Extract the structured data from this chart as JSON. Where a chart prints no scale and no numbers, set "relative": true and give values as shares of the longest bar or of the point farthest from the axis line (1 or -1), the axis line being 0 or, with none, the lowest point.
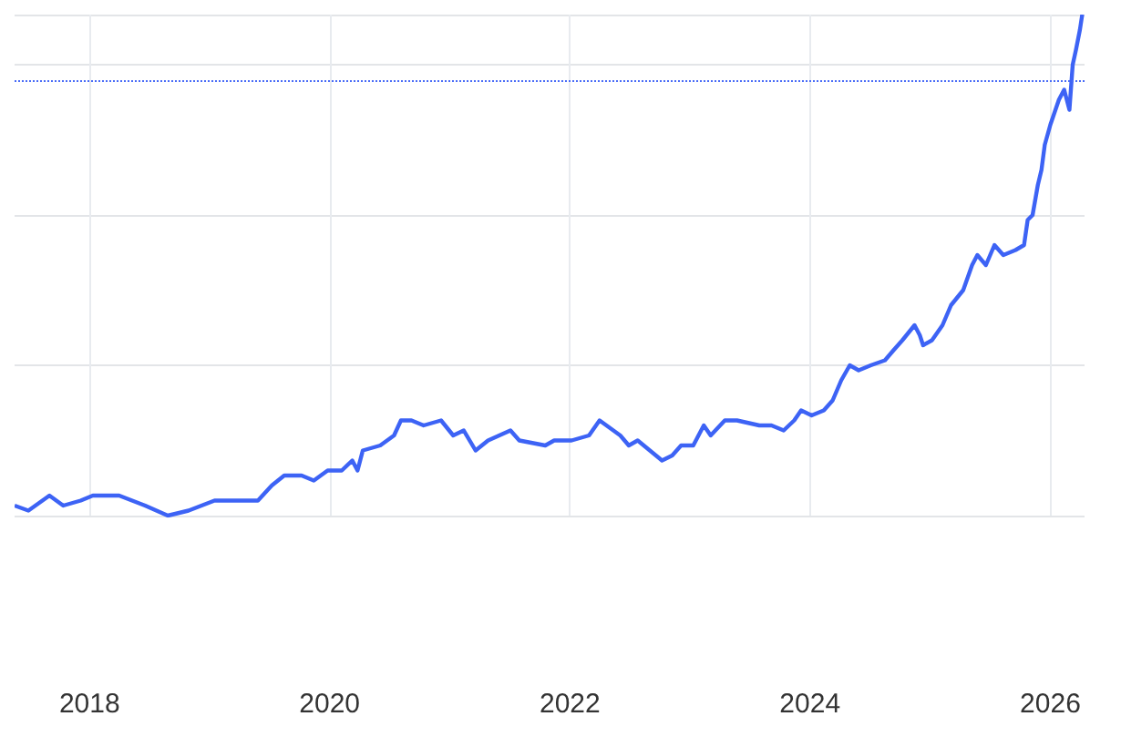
{
  "chart_data": {
    "type": "line",
    "relative": true,
    "grid": true,
    "marker": "none",
    "line_style": "solid",
    "xlim": [
      "2017-05-18",
      "2026-04-15"
    ],
    "xticks": [
      {
        "value": "2018-01-01",
        "label": "2018"
      },
      {
        "value": "2020-01-01",
        "label": "2020"
      },
      {
        "value": "2022-01-01",
        "label": "2022"
      },
      {
        "value": "2024-01-01",
        "label": "2024"
      },
      {
        "value": "2026-01-01",
        "label": "2026"
      }
    ],
    "x": [
      "2017-05-18",
      "2017-06-29",
      "2017-09-01",
      "2017-10-13",
      "2017-12-05",
      "2018-01-11",
      "2018-04-01",
      "2018-06-19",
      "2018-08-27",
      "2018-10-29",
      "2019-01-16",
      "2019-04-05",
      "2019-05-28",
      "2019-07-09",
      "2019-08-16",
      "2019-10-08",
      "2019-11-14",
      "2019-12-26",
      "2020-02-07",
      "2020-03-10",
      "2020-03-26",
      "2020-04-11",
      "2020-06-03",
      "2020-07-15",
      "2020-08-05",
      "2020-09-06",
      "2020-10-13",
      "2020-12-05",
      "2021-01-11",
      "2021-02-12",
      "2021-03-20",
      "2021-04-27",
      "2021-07-04",
      "2021-07-31",
      "2021-10-18",
      "2021-11-14",
      "2022-01-06",
      "2022-02-28",
      "2022-04-01",
      "2022-04-22",
      "2022-06-03",
      "2022-06-29",
      "2022-07-26",
      "2022-09-01",
      "2022-10-08",
      "2022-11-08",
      "2022-12-05",
      "2023-01-11",
      "2023-02-12",
      "2023-03-05",
      "2023-04-17",
      "2023-05-24",
      "2023-07-31",
      "2023-09-06",
      "2023-10-13",
      "2023-11-14",
      "2023-12-05",
      "2024-01-06",
      "2024-02-12",
      "2024-03-10",
      "2024-04-05",
      "2024-05-01",
      "2024-05-28",
      "2024-07-04",
      "2024-08-16",
      "2024-09-11",
      "2024-10-08",
      "2024-11-14",
      "2024-11-30",
      "2024-12-10",
      "2025-01-06",
      "2025-02-07",
      "2025-03-05",
      "2025-04-11",
      "2025-05-08",
      "2025-05-24",
      "2025-06-19",
      "2025-07-15",
      "2025-08-11",
      "2025-09-17",
      "2025-10-13",
      "2025-10-24",
      "2025-11-08",
      "2025-11-24",
      "2025-12-05",
      "2025-12-15",
      "2026-01-01",
      "2026-01-27",
      "2026-02-12",
      "2026-02-28",
      "2026-03-10",
      "2026-03-20",
      "2026-04-01",
      "2026-04-08"
    ],
    "series": [
      {
        "color": "#3d63f5",
        "values": [
          0.02,
          0.01,
          0.04,
          0.02,
          0.03,
          0.04,
          0.04,
          0.02,
          0.0,
          0.01,
          0.03,
          0.03,
          0.03,
          0.06,
          0.08,
          0.08,
          0.07,
          0.09,
          0.09,
          0.11,
          0.09,
          0.13,
          0.14,
          0.16,
          0.19,
          0.19,
          0.18,
          0.19,
          0.16,
          0.17,
          0.13,
          0.15,
          0.17,
          0.15,
          0.14,
          0.15,
          0.15,
          0.16,
          0.19,
          0.18,
          0.16,
          0.14,
          0.15,
          0.13,
          0.11,
          0.12,
          0.14,
          0.14,
          0.18,
          0.16,
          0.19,
          0.19,
          0.18,
          0.18,
          0.17,
          0.19,
          0.21,
          0.2,
          0.21,
          0.23,
          0.27,
          0.3,
          0.29,
          0.3,
          0.31,
          0.33,
          0.35,
          0.38,
          0.36,
          0.34,
          0.35,
          0.38,
          0.42,
          0.45,
          0.5,
          0.52,
          0.5,
          0.54,
          0.52,
          0.53,
          0.54,
          0.59,
          0.6,
          0.66,
          0.69,
          0.74,
          0.78,
          0.83,
          0.85,
          0.81,
          0.9,
          0.93,
          0.97,
          1.0
        ]
      }
    ],
    "ref_lines": [
      {
        "axis": "y",
        "value": 0.87,
        "line_style": "dotted",
        "color": "#4a6cf7"
      }
    ]
  }
}
